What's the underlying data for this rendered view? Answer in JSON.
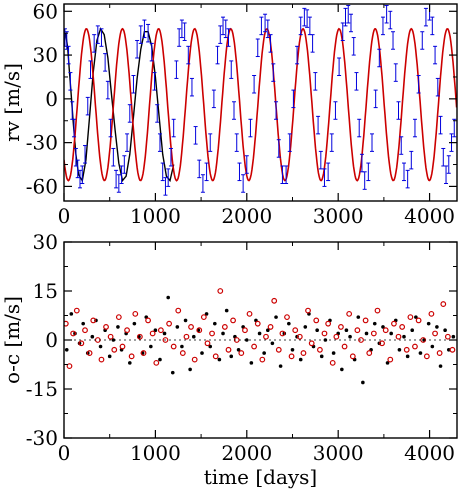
{
  "chart_data": [
    {
      "type": "line",
      "xlabel": "",
      "ylabel": "rv [m/s]",
      "xlim": [
        0,
        4300
      ],
      "ylim": [
        -70,
        65
      ],
      "x_ticks": [
        0,
        1000,
        2000,
        3000,
        4000
      ],
      "y_ticks": [
        60,
        30,
        0,
        -30,
        -60
      ],
      "x_tick_labels": [
        "0",
        "1000",
        "2000",
        "3000",
        "4000"
      ],
      "y_tick_labels": [
        "60",
        "30",
        "0",
        "-30",
        "-60"
      ],
      "model": {
        "period_days": 395,
        "amplitude_ms": 52,
        "offset_ms": -4,
        "phase_days": 245
      },
      "series": [
        {
          "color": "#000000",
          "style": "line",
          "x": [
            0,
            20,
            40,
            60,
            80,
            100,
            130,
            160,
            200,
            240,
            280,
            320,
            360,
            400,
            440,
            480,
            520,
            560,
            600,
            640,
            680,
            720,
            760,
            800,
            840,
            880,
            920,
            960,
            1000,
            1040,
            1080,
            1120,
            1160,
            1200
          ],
          "values": [
            46,
            44,
            35,
            18,
            2,
            -15,
            -38,
            -52,
            -56,
            -42,
            -12,
            18,
            40,
            48,
            44,
            28,
            3,
            -22,
            -44,
            -56,
            -53,
            -38,
            -12,
            14,
            34,
            46,
            46,
            36,
            15,
            -12,
            -38,
            -53,
            -56,
            -45
          ]
        },
        {
          "color": "#cc0000",
          "style": "line",
          "x": [
            0,
            4300
          ]
        },
        {
          "color": "#0000dd",
          "style": "errorbar",
          "error": 6,
          "x": [
            10,
            30,
            50,
            70,
            90,
            110,
            130,
            150,
            175,
            200,
            230,
            260,
            290,
            330,
            370,
            410,
            450,
            480,
            510,
            540,
            570,
            600,
            630,
            660,
            690,
            720,
            760,
            800,
            840,
            880,
            920,
            960,
            990,
            1020,
            1050,
            1080,
            1110,
            1140,
            1170,
            1200,
            1230,
            1260,
            1290,
            1320,
            1360,
            1400,
            1440,
            1480,
            1520,
            1560,
            1600,
            1640,
            1680,
            1710,
            1740,
            1770,
            1800,
            1830,
            1860,
            1890,
            1920,
            1960,
            2000,
            2040,
            2080,
            2120,
            2160,
            2200,
            2230,
            2260,
            2290,
            2320,
            2350,
            2390,
            2430,
            2470,
            2510,
            2550,
            2590,
            2630,
            2660,
            2690,
            2720,
            2750,
            2780,
            2810,
            2850,
            2890,
            2930,
            2970,
            3010,
            3050,
            3080,
            3110,
            3140,
            3170,
            3200,
            3230,
            3260,
            3290,
            3330,
            3370,
            3410,
            3450,
            3490,
            3530,
            3570,
            3600,
            3630,
            3660,
            3690,
            3720,
            3760,
            3800,
            3840,
            3880,
            3920,
            3960,
            4000,
            4030,
            4060,
            4090,
            4120,
            4150,
            4180,
            4210,
            4240,
            4270
          ],
          "values": [
            42,
            40,
            30,
            12,
            -8,
            -20,
            -40,
            -48,
            -55,
            -52,
            -38,
            -5,
            20,
            38,
            44,
            42,
            25,
            6,
            -20,
            -40,
            -55,
            -58,
            -52,
            -45,
            -30,
            -10,
            10,
            34,
            44,
            48,
            45,
            32,
            12,
            -10,
            -30,
            -50,
            -60,
            -54,
            -40,
            -20,
            20,
            42,
            48,
            46,
            30,
            8,
            -25,
            -48,
            -58,
            -50,
            -30,
            0,
            30,
            44,
            50,
            48,
            42,
            20,
            -8,
            -30,
            -50,
            -58,
            -45,
            -20,
            10,
            35,
            50,
            52,
            48,
            38,
            18,
            -8,
            -34,
            -52,
            -52,
            -30,
            0,
            30,
            50,
            56,
            55,
            50,
            38,
            12,
            -18,
            -42,
            -54,
            -50,
            -30,
            -8,
            22,
            46,
            56,
            58,
            52,
            36,
            12,
            -20,
            -44,
            -56,
            -50,
            -30,
            0,
            28,
            50,
            58,
            54,
            40,
            18,
            -8,
            -32,
            -50,
            -55,
            -42,
            -20,
            10,
            40,
            56,
            60,
            50,
            30,
            8,
            -18,
            -40,
            -52,
            -45,
            -30,
            -20
          ]
        }
      ]
    },
    {
      "type": "scatter",
      "xlabel": "time [days]",
      "ylabel": "o-c [m/s]",
      "xlim": [
        0,
        4300
      ],
      "ylim": [
        -30,
        30
      ],
      "x_ticks": [
        0,
        1000,
        2000,
        3000,
        4000
      ],
      "y_ticks": [
        30,
        15,
        0,
        -15,
        -30
      ],
      "x_tick_labels": [
        "0",
        "1000",
        "2000",
        "3000",
        "4000"
      ],
      "y_tick_labels": [
        "30",
        "15",
        "0",
        "-15",
        "-30"
      ],
      "series": [
        {
          "color": "#000000",
          "marker": "filled-dot",
          "x": [
            30,
            80,
            120,
            170,
            210,
            260,
            310,
            350,
            400,
            450,
            500,
            540,
            590,
            630,
            680,
            720,
            770,
            820,
            860,
            900,
            950,
            1000,
            1050,
            1100,
            1140,
            1190,
            1240,
            1290,
            1330,
            1380,
            1420,
            1470,
            1510,
            1560,
            1600,
            1650,
            1700,
            1740,
            1780,
            1830,
            1870,
            1910,
            1960,
            2000,
            2050,
            2100,
            2140,
            2190,
            2230,
            2280,
            2320,
            2370,
            2410,
            2460,
            2500,
            2550,
            2590,
            2640,
            2680,
            2730,
            2770,
            2820,
            2860,
            2910,
            2950,
            3000,
            3040,
            3090,
            3130,
            3180,
            3220,
            3270,
            3310,
            3360,
            3400,
            3450,
            3490,
            3540,
            3580,
            3630,
            3670,
            3720,
            3760,
            3810,
            3850,
            3900,
            3940,
            3990,
            4030,
            4080,
            4120,
            4170,
            4210,
            4260
          ],
          "values": [
            -3,
            8,
            2,
            -1,
            5,
            -4,
            1,
            6,
            -2,
            3,
            -5,
            0,
            4,
            -3,
            2,
            -7,
            5,
            1,
            -4,
            7,
            -2,
            3,
            -6,
            2,
            13,
            -10,
            4,
            -2,
            6,
            -9,
            1,
            3,
            -4,
            8,
            -2,
            5,
            -6,
            2,
            9,
            -5,
            1,
            -3,
            4,
            0,
            -7,
            6,
            2,
            -4,
            3,
            -1,
            7,
            -8,
            2,
            5,
            -3,
            1,
            -6,
            4,
            8,
            -2,
            3,
            -5,
            0,
            6,
            -4,
            2,
            -9,
            3,
            1,
            -6,
            7,
            -13,
            2,
            -3,
            5,
            -1,
            4,
            -7,
            2,
            6,
            -3,
            1,
            -5,
            3,
            7,
            -4,
            0,
            5,
            -2,
            4,
            -8,
            3,
            -3,
            1
          ]
        },
        {
          "color": "#cc0000",
          "marker": "open-circle",
          "x": [
            20,
            60,
            100,
            140,
            190,
            230,
            280,
            320,
            370,
            410,
            460,
            510,
            550,
            600,
            640,
            690,
            740,
            780,
            830,
            870,
            920,
            970,
            1010,
            1060,
            1110,
            1150,
            1200,
            1250,
            1300,
            1340,
            1390,
            1430,
            1480,
            1530,
            1570,
            1620,
            1660,
            1710,
            1760,
            1800,
            1850,
            1890,
            1940,
            1980,
            2030,
            2080,
            2120,
            2170,
            2210,
            2260,
            2300,
            2350,
            2390,
            2440,
            2490,
            2530,
            2580,
            2620,
            2670,
            2710,
            2760,
            2800,
            2850,
            2890,
            2940,
            2980,
            3030,
            3070,
            3120,
            3160,
            3210,
            3250,
            3300,
            3340,
            3390,
            3430,
            3480,
            3520,
            3570,
            3610,
            3660,
            3700,
            3750,
            3790,
            3840,
            3880,
            3930,
            3970,
            4020,
            4060,
            4110,
            4150,
            4200,
            4250
          ],
          "values": [
            5,
            -8,
            2,
            9,
            -1,
            3,
            -4,
            6,
            0,
            -6,
            4,
            1,
            -3,
            7,
            -2,
            3,
            -5,
            8,
            1,
            -4,
            6,
            2,
            -7,
            3,
            0,
            5,
            -2,
            9,
            -4,
            1,
            4,
            -6,
            3,
            7,
            -1,
            2,
            -5,
            15,
            4,
            -3,
            6,
            0,
            -4,
            3,
            8,
            -2,
            5,
            -6,
            1,
            4,
            12,
            -3,
            2,
            7,
            -5,
            3,
            1,
            -4,
            9,
            -1,
            6,
            -3,
            2,
            5,
            -7,
            1,
            4,
            -2,
            8,
            -5,
            3,
            0,
            6,
            -4,
            2,
            9,
            -1,
            3,
            -6,
            5,
            1,
            4,
            -3,
            7,
            -2,
            6,
            0,
            -5,
            8,
            2,
            -4,
            11,
            1,
            -3
          ]
        }
      ]
    }
  ]
}
